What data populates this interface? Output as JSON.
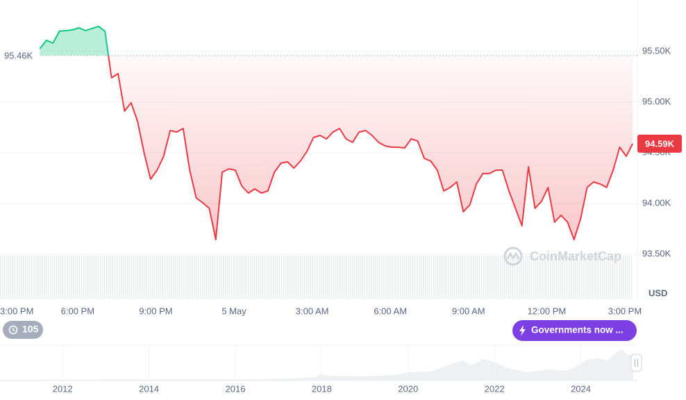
{
  "chart_data": {
    "type": "line",
    "x": [
      1.55,
      1.8,
      2.05,
      2.3,
      2.55,
      2.8,
      3.05,
      3.3,
      3.55,
      3.8,
      4.05,
      4.3,
      4.55,
      4.8,
      5.05,
      5.3,
      5.55,
      5.8,
      6.05,
      6.3,
      6.55,
      6.8,
      7.05,
      7.3,
      7.55,
      7.8,
      8.05,
      8.3,
      8.55,
      8.8,
      9.05,
      9.3,
      9.55,
      9.8,
      10.05,
      10.3,
      10.55,
      10.8,
      11.05,
      11.3,
      11.55,
      11.8,
      12.05,
      12.3,
      12.55,
      12.8,
      13.05,
      13.3,
      13.55,
      13.8,
      14.05,
      14.3,
      14.55,
      14.8,
      15.05,
      15.3,
      15.55,
      15.8,
      16.05,
      16.3,
      16.55,
      16.8,
      17.05,
      17.3,
      17.55,
      17.8,
      18.05,
      18.3,
      18.55,
      18.8,
      19.05,
      19.3,
      19.55,
      19.8,
      20.05,
      20.3,
      20.55,
      20.8,
      21.05,
      21.3,
      21.55,
      21.8,
      22.05,
      22.3,
      22.55,
      22.8,
      23.05,
      23.3,
      23.55,
      23.8,
      24.05,
      24.3
    ],
    "values": [
      95527,
      95610,
      95582,
      95699,
      95705,
      95712,
      95733,
      95705,
      95726,
      95747,
      95699,
      95240,
      95281,
      94911,
      94993,
      94808,
      94500,
      94240,
      94329,
      94466,
      94719,
      94705,
      94740,
      94329,
      94055,
      94007,
      93952,
      93644,
      94308,
      94342,
      94329,
      94171,
      94103,
      94144,
      94103,
      94123,
      94308,
      94397,
      94411,
      94349,
      94418,
      94514,
      94651,
      94671,
      94637,
      94705,
      94740,
      94637,
      94603,
      94705,
      94719,
      94671,
      94603,
      94568,
      94555,
      94555,
      94548,
      94637,
      94616,
      94445,
      94418,
      94329,
      94123,
      94158,
      94212,
      93918,
      93986,
      94192,
      94295,
      94295,
      94329,
      94329,
      94123,
      93952,
      93781,
      94363,
      93952,
      94021,
      94158,
      93815,
      93884,
      93815,
      93644,
      93849,
      94158,
      94212,
      94192,
      94158,
      94329,
      94555,
      94466,
      94590
    ],
    "up_color": "#16c784",
    "down_color": "#ea3943",
    "xlim": [
      0.02,
      24.48
    ],
    "xticks": [
      {
        "value": 0,
        "label": "3:00 PM"
      },
      {
        "value": 3,
        "label": "6:00 PM"
      },
      {
        "value": 6,
        "label": "9:00 PM"
      },
      {
        "value": 9,
        "label": "5 May"
      },
      {
        "value": 12,
        "label": "3:00 AM"
      },
      {
        "value": 15,
        "label": "6:00 AM"
      },
      {
        "value": 18,
        "label": "9:00 AM"
      },
      {
        "value": 21,
        "label": "12:00 PM"
      },
      {
        "value": 24,
        "label": "3:00 PM"
      }
    ],
    "ylim": [
      93000,
      96000
    ],
    "yticks": [
      {
        "value": 95500,
        "label": "95.50K"
      },
      {
        "value": 95000,
        "label": "95.00K"
      },
      {
        "value": 94500,
        "label": "94.50K"
      },
      {
        "value": 94000,
        "label": "94.00K"
      },
      {
        "value": 93500,
        "label": "93.50K"
      }
    ],
    "grid": true,
    "baseline": {
      "value": 95460,
      "label": "95.46K"
    },
    "last_price": {
      "value": 94590,
      "label": "94.59K"
    },
    "currency": "USD",
    "watermark": "CoinMarketCap"
  },
  "navigator": {
    "xlim": [
      2010.55,
      2025.31
    ],
    "xticks": [
      2012,
      2014,
      2016,
      2018,
      2020,
      2022,
      2024
    ]
  },
  "ui": {
    "history_badge": "105",
    "news_button": "Governments now ..."
  }
}
